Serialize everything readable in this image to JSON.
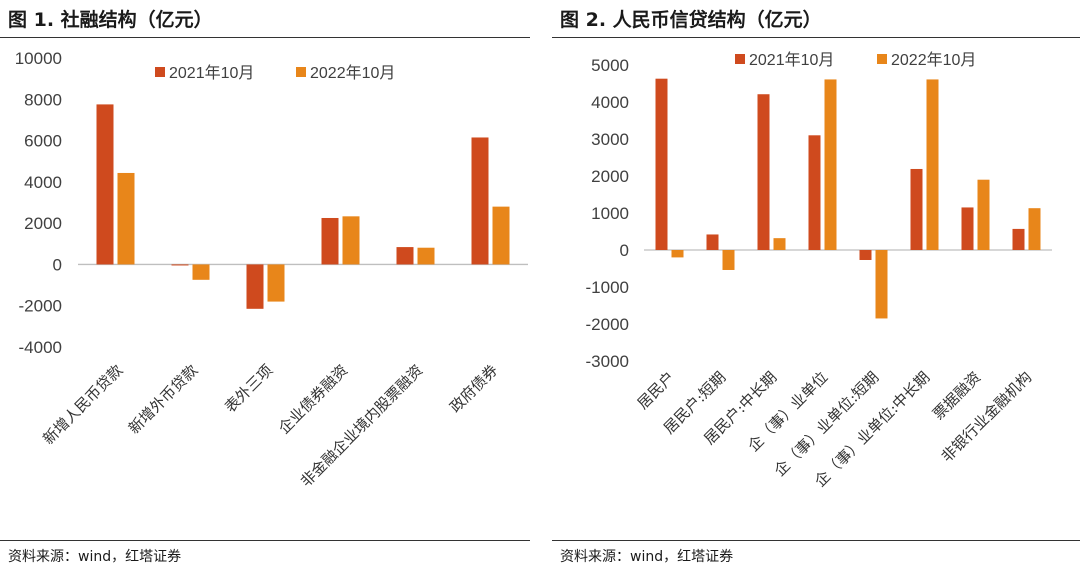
{
  "colors": {
    "series1": "#CF4A1E",
    "series2": "#E8861A",
    "axis": "#bfbfbf",
    "text": "#404040"
  },
  "left": {
    "title": "图 1. 社融结构（亿元）",
    "source": "资料来源：wind，红塔证券"
  },
  "right": {
    "title": "图 2. 人民币信贷结构（亿元）",
    "source": "资料来源：wind，红塔证券"
  },
  "chart_data": [
    {
      "type": "bar",
      "title": "社融结构（亿元）",
      "categories": [
        "新增人民币贷款",
        "新增外币贷款",
        "表外三项",
        "企业债券融资",
        "非金融企业境内股票融资",
        "政府债券"
      ],
      "series": [
        {
          "name": "2021年10月",
          "values": [
            7752,
            -50,
            -2150,
            2250,
            840,
            6150
          ]
        },
        {
          "name": "2022年10月",
          "values": [
            4431,
            -745,
            -1800,
            2330,
            810,
            2800
          ]
        }
      ],
      "ylim": [
        -4000,
        10000
      ],
      "yticks": [
        -4000,
        -2000,
        0,
        2000,
        4000,
        6000,
        8000,
        10000
      ],
      "legend": "top"
    },
    {
      "type": "bar",
      "title": "人民币信贷结构（亿元）",
      "categories": [
        "居民户",
        "居民户:短期",
        "居民户:中长期",
        "企（事）业单位",
        "企（事）业单位:短期",
        "企（事）业单位:中长期",
        "票据融资",
        "非银行业金融机构"
      ],
      "series": [
        {
          "name": "2021年10月",
          "values": [
            4630,
            420,
            4210,
            3100,
            -270,
            2190,
            1150,
            570
          ]
        },
        {
          "name": "2022年10月",
          "values": [
            -200,
            -540,
            320,
            4610,
            -1850,
            4610,
            1900,
            1130
          ]
        }
      ],
      "ylim": [
        -3000,
        5000
      ],
      "yticks": [
        -3000,
        -2000,
        -1000,
        0,
        1000,
        2000,
        3000,
        4000,
        5000
      ],
      "legend": "top"
    }
  ]
}
